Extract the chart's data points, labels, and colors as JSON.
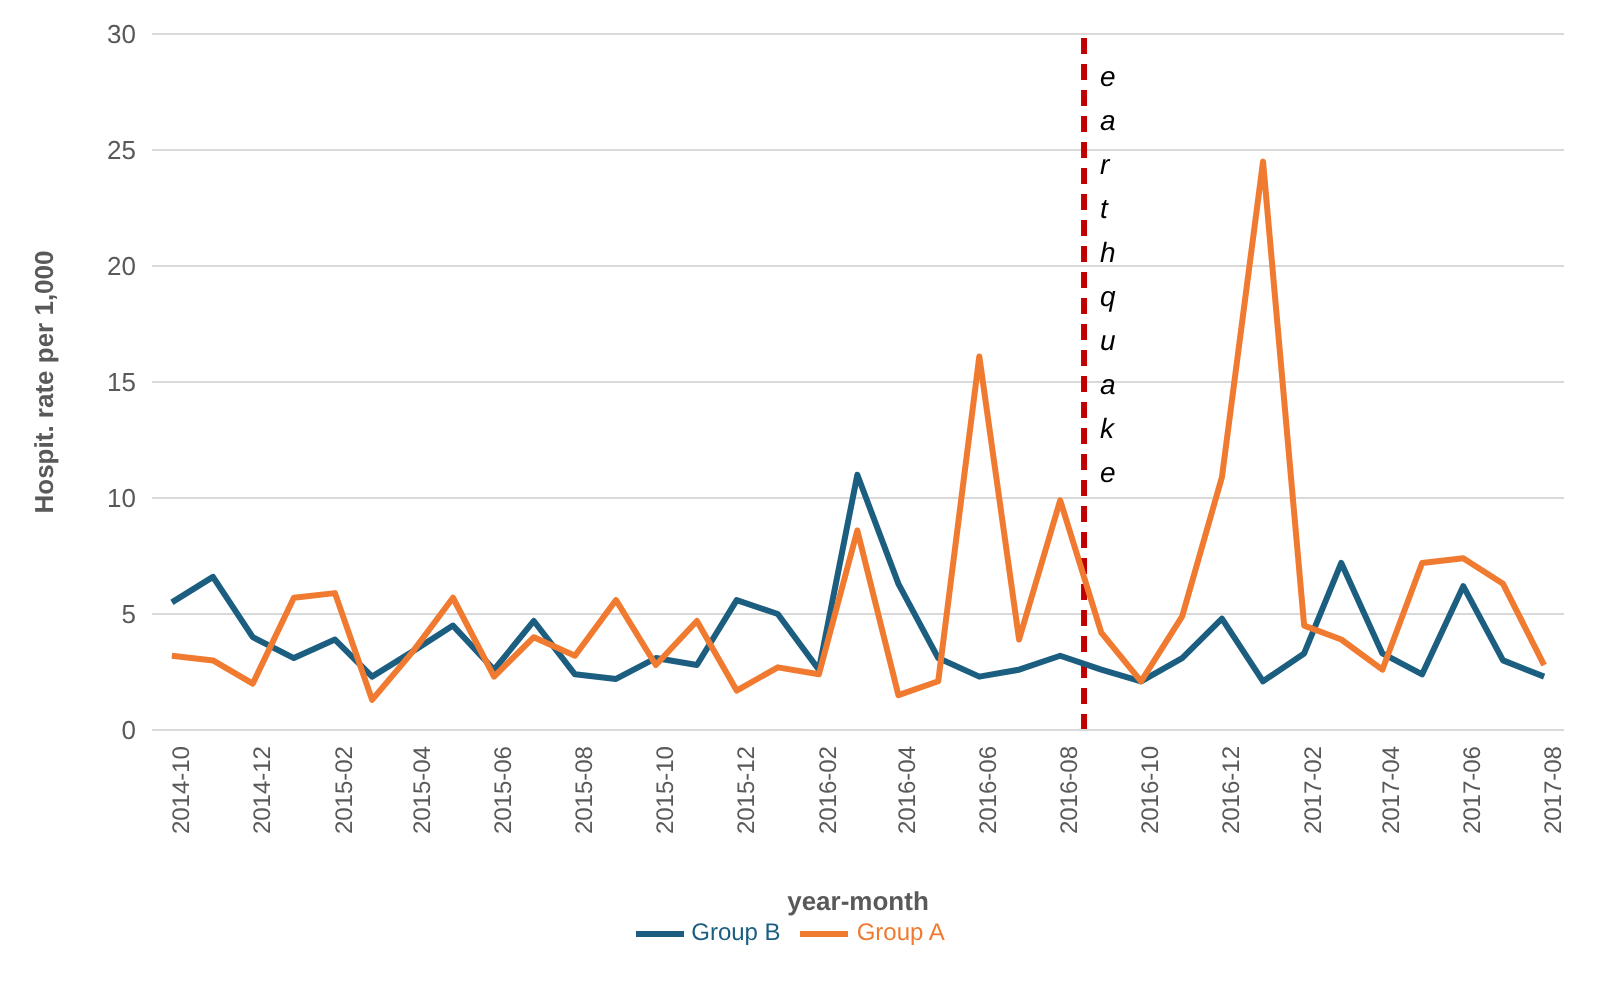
{
  "chart_data": {
    "type": "line",
    "xlabel": "year-month",
    "ylabel": "Hospit. rate per 1,000",
    "x": [
      "2014-10",
      "2014-11",
      "2014-12",
      "2015-01",
      "2015-02",
      "2015-03",
      "2015-04",
      "2015-05",
      "2015-06",
      "2015-07",
      "2015-08",
      "2015-09",
      "2015-10",
      "2015-11",
      "2015-12",
      "2016-01",
      "2016-02",
      "2016-03",
      "2016-04",
      "2016-05",
      "2016-06",
      "2016-07",
      "2016-08",
      "2016-09",
      "2016-10",
      "2016-11",
      "2016-12",
      "2017-01",
      "2017-02",
      "2017-03",
      "2017-04",
      "2017-05",
      "2017-06",
      "2017-07",
      "2017-08"
    ],
    "xlim": [
      "2014-09-16",
      "2017-08-16"
    ],
    "xticks": [
      "2014-10",
      "2014-12",
      "2015-02",
      "2015-04",
      "2015-06",
      "2015-08",
      "2015-10",
      "2015-12",
      "2016-02",
      "2016-04",
      "2016-06",
      "2016-08",
      "2016-10",
      "2016-12",
      "2017-02",
      "2017-04",
      "2017-06",
      "2017-08"
    ],
    "ylim": [
      0,
      30
    ],
    "yticks": [
      0,
      5,
      10,
      15,
      20,
      25,
      30
    ],
    "series": [
      {
        "name": "Group B",
        "color": "#1b5e80",
        "values": [
          5.5,
          6.6,
          4.0,
          3.1,
          3.9,
          2.3,
          3.4,
          4.5,
          2.6,
          4.7,
          2.4,
          2.2,
          3.1,
          2.8,
          5.6,
          5.0,
          2.6,
          11.0,
          6.3,
          3.1,
          2.3,
          2.6,
          3.2,
          2.6,
          2.1,
          3.1,
          4.8,
          2.1,
          3.3,
          7.2,
          3.3,
          2.4,
          6.2,
          3.0,
          2.3
        ]
      },
      {
        "name": "Group A",
        "color": "#f07a30",
        "values": [
          3.2,
          3.0,
          2.0,
          5.7,
          5.9,
          1.3,
          3.4,
          5.7,
          2.3,
          4.0,
          3.2,
          5.6,
          2.8,
          4.7,
          1.7,
          2.7,
          2.4,
          8.6,
          1.5,
          2.1,
          16.1,
          3.9,
          9.9,
          4.2,
          2.1,
          4.9,
          10.9,
          24.5,
          4.5,
          3.9,
          2.6,
          7.2,
          7.4,
          6.3,
          2.8
        ]
      }
    ],
    "ref_lines": [
      {
        "axis": "x",
        "value": "2016-08-19",
        "label": "earthquake",
        "color": "#c00000",
        "line_style": "dashed"
      }
    ],
    "grid": "y",
    "legend": "bottom",
    "marker": "none",
    "line_style": "solid"
  }
}
